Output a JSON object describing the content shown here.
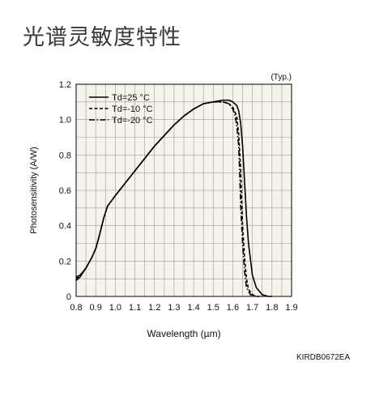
{
  "page": {
    "title": "光谱灵敏度特性",
    "doc_code": "KIRDB0672EA"
  },
  "chart_data": {
    "type": "line",
    "annotation": "(Typ.)",
    "xlabel": "Wavelength (µm)",
    "ylabel": "Photosensitivity (A/W)",
    "xlim": [
      0.8,
      1.9
    ],
    "ylim": [
      0,
      1.2
    ],
    "xticks": [
      "0.8",
      "0.9",
      "1.0",
      "1.1",
      "1.2",
      "1.3",
      "1.4",
      "1.5",
      "1.6",
      "1.7",
      "1.8",
      "1.9"
    ],
    "yticks": [
      "0",
      "0.2",
      "0.4",
      "0.6",
      "0.8",
      "1.0",
      "1.2"
    ],
    "grid": true,
    "minor_grid_step_x": 0.05,
    "minor_grid_step_y": 0.1,
    "legend_position": "top-left",
    "plot_background": "#f6f3ea",
    "series": [
      {
        "name": "Td=25 °C",
        "style": "solid",
        "color": "#000000",
        "x": [
          0.8,
          0.82,
          0.85,
          0.88,
          0.9,
          0.92,
          0.94,
          0.96,
          1.0,
          1.05,
          1.1,
          1.15,
          1.2,
          1.25,
          1.3,
          1.35,
          1.4,
          1.45,
          1.5,
          1.55,
          1.58,
          1.6,
          1.62,
          1.63,
          1.64,
          1.65,
          1.66,
          1.67,
          1.68,
          1.7,
          1.72,
          1.75,
          1.78,
          1.8
        ],
        "values": [
          0.09,
          0.11,
          0.16,
          0.22,
          0.27,
          0.35,
          0.44,
          0.51,
          0.57,
          0.64,
          0.71,
          0.78,
          0.85,
          0.91,
          0.97,
          1.02,
          1.06,
          1.09,
          1.1,
          1.11,
          1.11,
          1.1,
          1.08,
          1.05,
          0.98,
          0.85,
          0.65,
          0.45,
          0.3,
          0.12,
          0.05,
          0.01,
          0.0,
          0.0
        ]
      },
      {
        "name": "Td=-10 °C",
        "style": "dashed",
        "color": "#000000",
        "x": [
          0.8,
          0.82,
          0.85,
          0.88,
          0.9,
          0.92,
          0.94,
          0.96,
          1.0,
          1.05,
          1.1,
          1.15,
          1.2,
          1.25,
          1.3,
          1.35,
          1.4,
          1.45,
          1.5,
          1.55,
          1.58,
          1.6,
          1.62,
          1.63,
          1.64,
          1.645,
          1.65,
          1.66,
          1.67,
          1.68,
          1.7,
          1.72,
          1.75
        ],
        "values": [
          0.1,
          0.12,
          0.16,
          0.22,
          0.27,
          0.35,
          0.44,
          0.51,
          0.57,
          0.64,
          0.71,
          0.78,
          0.85,
          0.91,
          0.97,
          1.02,
          1.06,
          1.09,
          1.1,
          1.1,
          1.09,
          1.07,
          1.02,
          0.92,
          0.72,
          0.55,
          0.4,
          0.22,
          0.1,
          0.04,
          0.01,
          0.0,
          0.0
        ]
      },
      {
        "name": "Td=-20 °C",
        "style": "dashdot",
        "color": "#000000",
        "x": [
          0.8,
          0.82,
          0.85,
          0.88,
          0.9,
          0.92,
          0.94,
          0.96,
          1.0,
          1.05,
          1.1,
          1.15,
          1.2,
          1.25,
          1.3,
          1.35,
          1.4,
          1.45,
          1.5,
          1.55,
          1.58,
          1.6,
          1.61,
          1.62,
          1.63,
          1.635,
          1.64,
          1.65,
          1.66,
          1.67,
          1.69,
          1.72
        ],
        "values": [
          0.11,
          0.12,
          0.16,
          0.22,
          0.27,
          0.35,
          0.44,
          0.51,
          0.57,
          0.64,
          0.71,
          0.78,
          0.85,
          0.91,
          0.97,
          1.02,
          1.06,
          1.09,
          1.1,
          1.1,
          1.09,
          1.06,
          1.03,
          0.97,
          0.85,
          0.7,
          0.52,
          0.3,
          0.14,
          0.05,
          0.01,
          0.0
        ]
      }
    ]
  }
}
